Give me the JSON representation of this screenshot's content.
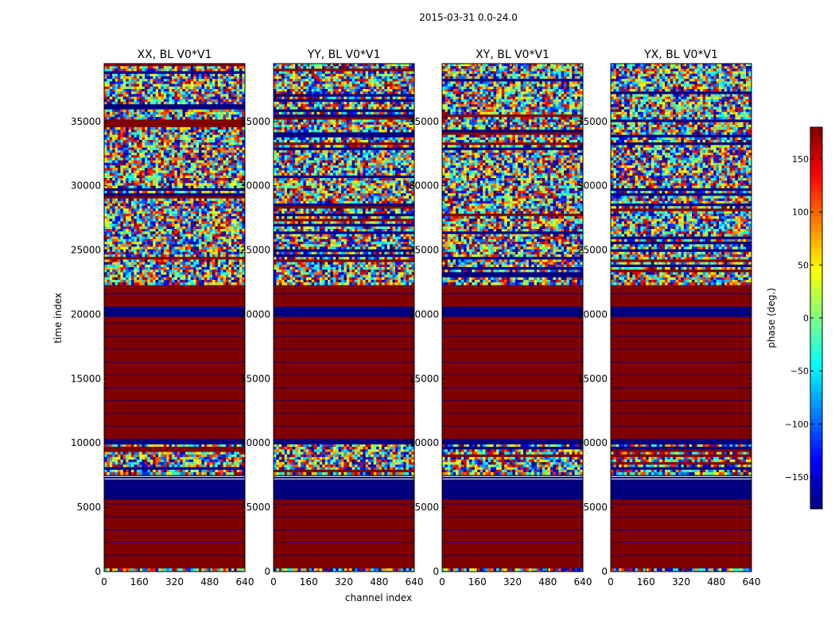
{
  "figure_title": "2015-03-31 0.0-24.0",
  "chart_data": {
    "type": "heatmap",
    "suptitle": "2015-03-31 0.0-24.0",
    "xlabel": "channel index",
    "ylabel": "time index",
    "xlim": [
      0,
      640
    ],
    "ylim": [
      0,
      39500
    ],
    "xticks": [
      "0",
      "160",
      "320",
      "480",
      "640"
    ],
    "yticks": [
      "0",
      "5000",
      "10000",
      "15000",
      "20000",
      "25000",
      "30000",
      "35000"
    ],
    "xtick_values": [
      0,
      160,
      320,
      480,
      640
    ],
    "ytick_values": [
      0,
      5000,
      10000,
      15000,
      20000,
      25000,
      30000,
      35000
    ],
    "panels": [
      {
        "title": "XX, BL V0*V1"
      },
      {
        "title": "YY, BL V0*V1"
      },
      {
        "title": "XY, BL V0*V1"
      },
      {
        "title": "YX, BL V0*V1"
      }
    ],
    "colorbar": {
      "label": "phase (deg.)",
      "range": [
        -180,
        180
      ],
      "ticks": [
        "150",
        "100",
        "50",
        "0",
        "−50",
        "−100",
        "−150"
      ],
      "tick_values": [
        150,
        100,
        50,
        0,
        -50,
        -100,
        -150
      ],
      "colormap": "jet",
      "stops": [
        "#00007f",
        "#0000ff",
        "#007fff",
        "#00ffff",
        "#7fff7f",
        "#ffff00",
        "#ff7f00",
        "#ff0000",
        "#7f0000"
      ]
    },
    "bands": [
      {
        "t0": 0,
        "t1": 250,
        "kind": "noise"
      },
      {
        "t0": 250,
        "t1": 5600,
        "phase": 180
      },
      {
        "t0": 5600,
        "t1": 7000,
        "phase": -180
      },
      {
        "t0": 7000,
        "t1": 7600,
        "phase": -180,
        "lines": 2
      },
      {
        "t0": 7600,
        "t1": 9900,
        "kind": "noise"
      },
      {
        "t0": 9900,
        "t1": 10300,
        "phase": -180
      },
      {
        "t0": 10300,
        "t1": 19800,
        "phase": 180
      },
      {
        "t0": 19800,
        "t1": 20600,
        "phase": -180
      },
      {
        "t0": 20600,
        "t1": 22400,
        "phase": 180
      },
      {
        "t0": 22400,
        "t1": 39500,
        "kind": "noise"
      }
    ],
    "red_lines_deg180_every_time_units": 1000,
    "noise_note": "random phase across channels in unflagged intervals"
  },
  "colors": {
    "frame": "#000000",
    "flag_line": "#00007f"
  }
}
